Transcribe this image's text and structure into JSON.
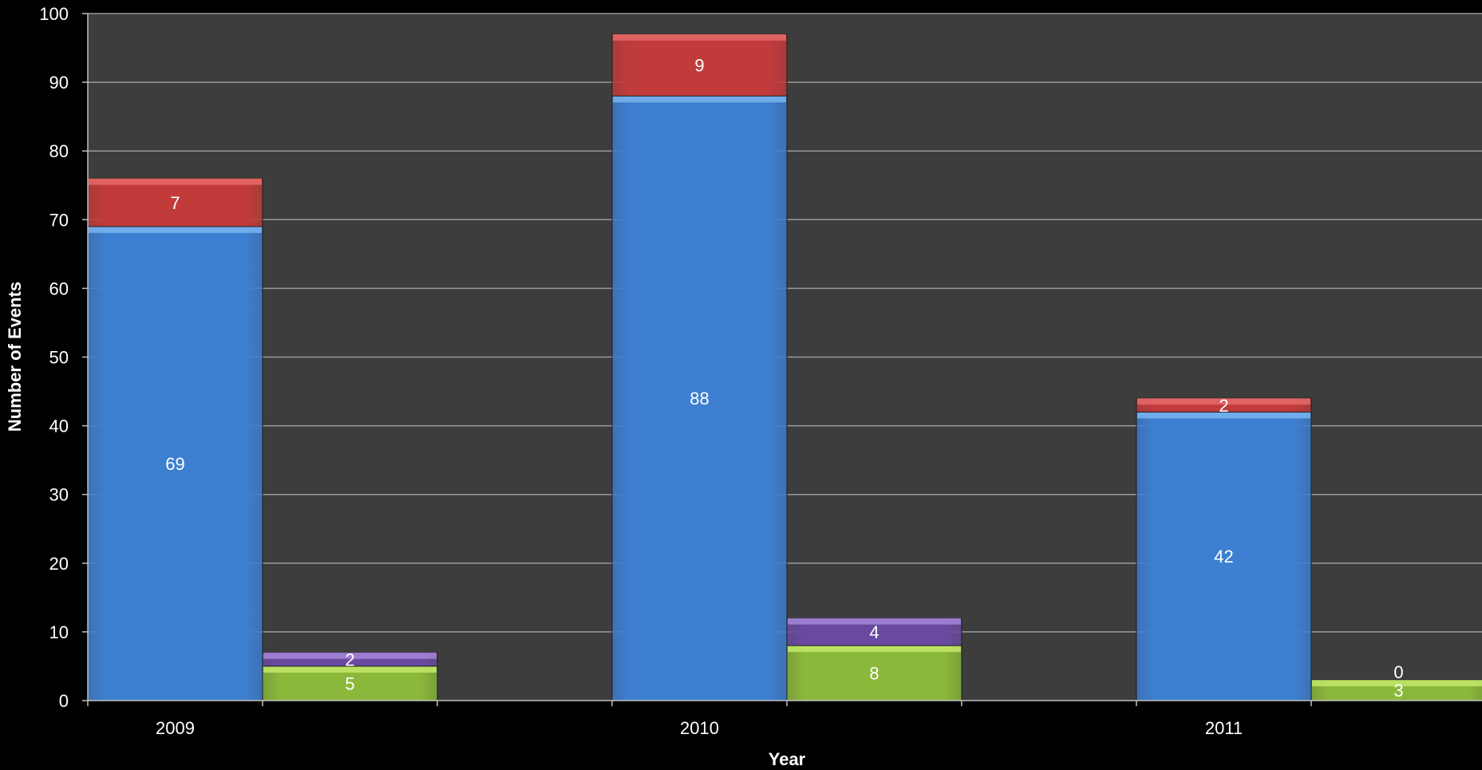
{
  "chart_data": {
    "type": "bar",
    "title": "",
    "xlabel": "Year",
    "ylabel": "Number of Events",
    "ylim": [
      0,
      100
    ],
    "yticks": [
      0,
      10,
      20,
      30,
      40,
      50,
      60,
      70,
      80,
      90,
      100
    ],
    "grid": true,
    "categories": [
      "2009",
      "2010",
      "2011"
    ],
    "stacks": [
      {
        "segments": [
          {
            "values": [
              69,
              88,
              42
            ],
            "color": "#3d7fd0",
            "top_color": "#7ab4f0"
          },
          {
            "values": [
              7,
              9,
              2
            ],
            "color": "#c23b3b",
            "top_color": "#e86a6a"
          }
        ]
      },
      {
        "segments": [
          {
            "values": [
              5,
              8,
              3
            ],
            "color": "#8ab83a",
            "top_color": "#c4e86a"
          },
          {
            "values": [
              2,
              4,
              0
            ],
            "color": "#6a4aa0",
            "top_color": "#a586d8"
          }
        ]
      }
    ],
    "background_color": "#000000",
    "plot_background_color": "#3d3d3d",
    "gridline_color": "#9a9a9a",
    "axis_color": "#bfbfbf",
    "text_color": "#ffffff"
  }
}
